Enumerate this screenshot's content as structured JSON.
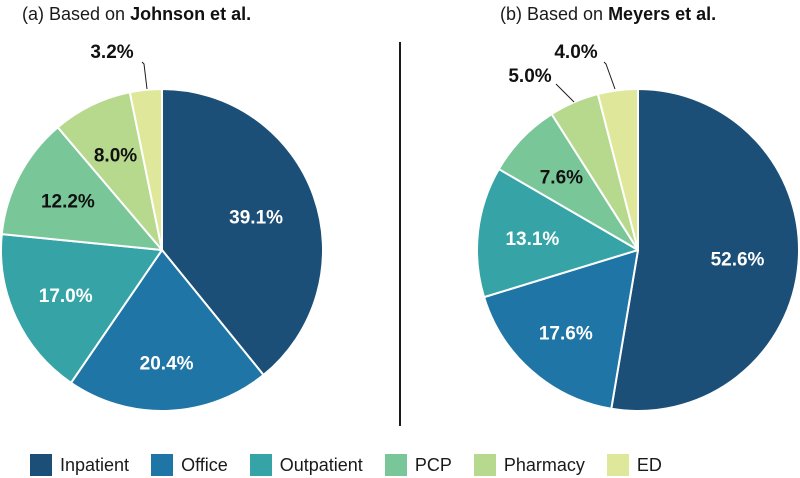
{
  "colors": {
    "Inpatient": "#1b4f78",
    "Office": "#1f75a5",
    "Outpatient": "#36a4a6",
    "PCP": "#79c799",
    "Pharmacy": "#b6d98d",
    "ED": "#dfe89a"
  },
  "legend": [
    "Inpatient",
    "Office",
    "Outpatient",
    "PCP",
    "Pharmacy",
    "ED"
  ],
  "panels": [
    {
      "prefix": "(a) Based on ",
      "source": "Johnson et al."
    },
    {
      "prefix": "(b) Based on ",
      "source": "Meyers et al."
    }
  ],
  "chart_data": [
    {
      "type": "pie",
      "title": "(a) Based on Johnson et al.",
      "categories": [
        "Inpatient",
        "Office",
        "Outpatient",
        "PCP",
        "Pharmacy",
        "ED"
      ],
      "values": [
        39.1,
        20.4,
        17.0,
        12.2,
        8.0,
        3.2
      ],
      "labels": [
        "39.1%",
        "20.4%",
        "17.0%",
        "12.2%",
        "8.0%",
        "3.2%"
      ],
      "start": "12 o'clock",
      "direction": "clockwise",
      "legend": "bottom"
    },
    {
      "type": "pie",
      "title": "(b) Based on Meyers et al.",
      "categories": [
        "Inpatient",
        "Office",
        "Outpatient",
        "PCP",
        "Pharmacy",
        "ED"
      ],
      "values": [
        52.6,
        17.6,
        13.1,
        7.6,
        5.0,
        4.0
      ],
      "labels": [
        "52.6%",
        "17.6%",
        "13.1%",
        "7.6%",
        "5.0%",
        "4.0%"
      ],
      "start": "12 o'clock",
      "direction": "clockwise",
      "legend": "bottom"
    }
  ]
}
